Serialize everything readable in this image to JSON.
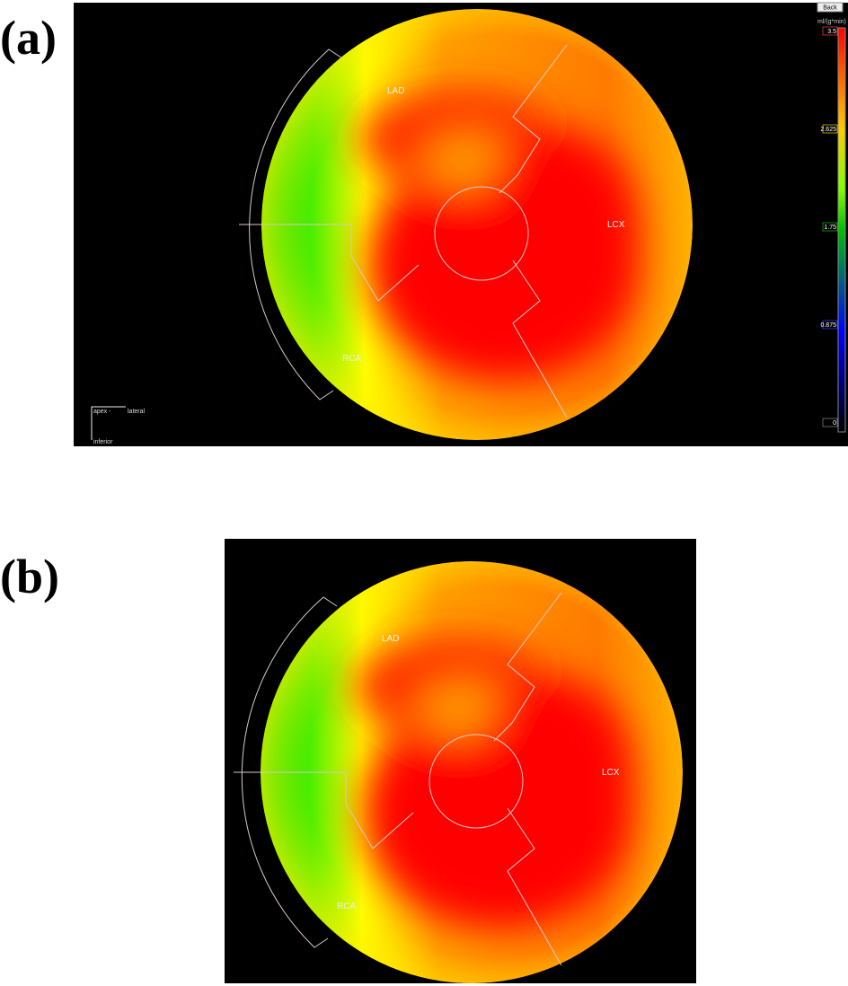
{
  "panels": [
    {
      "label": "(a)",
      "button": "Back",
      "unit": "ml/(g*min)",
      "scale": [
        "3.5",
        "2.625",
        "1.75",
        "0.875",
        "0"
      ],
      "territories": [
        "LAD",
        "LCX",
        "RCA"
      ],
      "orientation": [
        "apex -",
        "lateral",
        "inferior"
      ]
    },
    {
      "label": "(b)",
      "territories": [
        "LAD",
        "LCX",
        "RCA"
      ]
    }
  ]
}
